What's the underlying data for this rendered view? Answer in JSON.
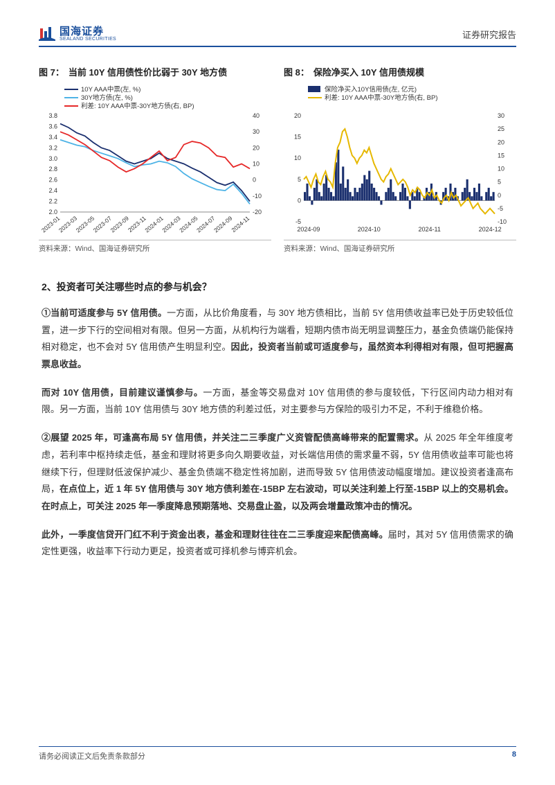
{
  "header": {
    "logo_cn": "国海证券",
    "logo_en": "SEALAND SECURITIES",
    "right": "证券研究报告"
  },
  "chart7": {
    "label": "图 7：",
    "title": "当前 10Y 信用债性价比弱于 30Y 地方债",
    "legend": [
      {
        "text": "10Y AAA中票(左, %)",
        "color": "#1a2f6e"
      },
      {
        "text": "30Y地方债(左, %)",
        "color": "#4db3e6"
      },
      {
        "text": "利差: 10Y AAA中票-30Y地方债(右, BP)",
        "color": "#e62828"
      }
    ],
    "yleft": {
      "min": 2.0,
      "max": 3.8,
      "ticks": [
        2.0,
        2.2,
        2.4,
        2.6,
        2.8,
        3.0,
        3.2,
        3.4,
        3.6,
        3.8
      ]
    },
    "yright": {
      "min": -20,
      "max": 40,
      "ticks": [
        -20,
        -10,
        0,
        10,
        20,
        30,
        40
      ]
    },
    "xlabels": [
      "2023-01",
      "2023-03",
      "2023-05",
      "2023-07",
      "2023-09",
      "2023-11",
      "2024-01",
      "2024-03",
      "2024-05",
      "2024-07",
      "2024-09",
      "2024-11"
    ],
    "series": {
      "s10y": [
        3.65,
        3.58,
        3.48,
        3.42,
        3.3,
        3.2,
        3.15,
        3.05,
        2.95,
        2.9,
        2.95,
        3.0,
        3.1,
        3.0,
        2.95,
        2.9,
        2.82,
        2.75,
        2.65,
        2.55,
        2.5,
        2.56,
        2.4,
        2.2
      ],
      "s30y": [
        3.35,
        3.3,
        3.25,
        3.22,
        3.15,
        3.1,
        3.05,
        3.0,
        2.92,
        2.85,
        2.88,
        2.9,
        2.95,
        2.92,
        2.85,
        2.72,
        2.62,
        2.55,
        2.48,
        2.42,
        2.4,
        2.52,
        2.35,
        2.15
      ],
      "spread": [
        30,
        28,
        25,
        22,
        18,
        14,
        12,
        8,
        5,
        7,
        10,
        14,
        18,
        12,
        14,
        22,
        24,
        23,
        20,
        15,
        14,
        8,
        10,
        7
      ]
    },
    "colors": {
      "s10y": "#1a2f6e",
      "s30y": "#4db3e6",
      "spread": "#e62828",
      "grid": "#d8d8d8",
      "axis": "#888",
      "text": "#333",
      "bg": "#ffffff"
    },
    "source": "资料来源：Wind、国海证券研究所"
  },
  "chart8": {
    "label": "图 8：",
    "title": "保险净买入 10Y 信用债规模",
    "legend": [
      {
        "text": "保险净买入10Y信用债(左, 亿元)",
        "color": "#1a2f6e",
        "type": "bar"
      },
      {
        "text": "利差: 10Y AAA中票-30Y地方债(右, BP)",
        "color": "#e6b800",
        "type": "line"
      }
    ],
    "yleft": {
      "min": -5,
      "max": 20,
      "ticks": [
        -5,
        0,
        5,
        10,
        15,
        20
      ]
    },
    "yright": {
      "min": -10,
      "max": 30,
      "ticks": [
        -10,
        -5,
        0,
        5,
        10,
        15,
        20,
        25,
        30
      ]
    },
    "xlabels": [
      "2024-09",
      "2024-10",
      "2024-11",
      "2024-12"
    ],
    "series": {
      "bars": [
        2,
        4,
        1,
        -1,
        3,
        5,
        2,
        1,
        4,
        6,
        3,
        2,
        1,
        9,
        12,
        4,
        8,
        3,
        5,
        2,
        1,
        3,
        2,
        3,
        4,
        6,
        5,
        7,
        4,
        3,
        2,
        1,
        -1,
        0,
        2,
        3,
        5,
        2,
        1,
        0,
        2,
        4,
        3,
        1,
        -2,
        2,
        1,
        3,
        2,
        0,
        1,
        3,
        2,
        4,
        1,
        2,
        0,
        -1,
        2,
        3,
        1,
        4,
        2,
        3,
        1,
        0,
        2,
        3,
        5,
        2,
        1,
        3,
        2,
        4,
        1,
        0,
        2,
        3,
        1,
        2
      ],
      "line": [
        6,
        7,
        5,
        3,
        6,
        8,
        5,
        4,
        7,
        9,
        6,
        5,
        3,
        12,
        18,
        20,
        24,
        25,
        22,
        18,
        15,
        14,
        12,
        14,
        15,
        17,
        16,
        18,
        15,
        12,
        10,
        8,
        6,
        5,
        7,
        8,
        10,
        8,
        6,
        4,
        5,
        6,
        5,
        3,
        0,
        2,
        1,
        3,
        2,
        0,
        -1,
        1,
        0,
        2,
        -1,
        0,
        -2,
        -3,
        -1,
        0,
        -2,
        1,
        -1,
        0,
        -2,
        -4,
        -3,
        -2,
        -1,
        -3,
        -5,
        -4,
        -3,
        -5,
        -6,
        -7,
        -6,
        -5,
        -6,
        -7
      ]
    },
    "colors": {
      "bar": "#1a2f6e",
      "line": "#e6b800",
      "grid": "#d8d8d8",
      "axis": "#888",
      "text": "#333",
      "bg": "#ffffff"
    },
    "source": "资料来源：Wind、国海证券研究所"
  },
  "body": {
    "section": "2、投资者可关注哪些时点的参与机会？",
    "p1_lead": "①当前可适度参与 5Y 信用债。",
    "p1_rest": "一方面，从比价角度看，与 30Y 地方债相比，当前 5Y 信用债收益率已处于历史较低位置，进一步下行的空间相对有限。但另一方面，从机构行为端看，短期内债市尚无明显调整压力，基金负债端仍能保持相对稳定，也不会对 5Y 信用债产生明显利空。",
    "p1_bold": "因此，投资者当前或可适度参与，虽然资本利得相对有限，但可把握高票息收益。",
    "p2_lead": "而对 10Y 信用债，目前建议谨慎参与。",
    "p2_rest": "一方面，基金等交易盘对 10Y 信用债的参与度较低，下行区间内动力相对有限。另一方面，当前 10Y 信用债与 30Y 地方债的利差过低，对主要参与方保险的吸引力不足，不利于维稳价格。",
    "p3_lead": "②展望 2025 年，可逢高布局 5Y 信用债，并关注二三季度广义资管配债高峰带来的配置需求。",
    "p3_rest1": "从 2025 年全年维度考虑，若利率中枢持续走低，基金和理财将更多向久期要收益，对长端信用债的需求量不弱，5Y 信用债收益率可能也将继续下行，但理财低波保护减少、基金负债端不稳定性将加剧，进而导致 5Y 信用债波动幅度增加。建议投资者逢高布局，",
    "p3_bold1": "在点位上，近 1 年 5Y 信用债与 30Y 地方债利差在-15BP 左右波动，可以关注利差上行至-15BP 以上的交易机会。在时点上，可关注 2025 年一季度降息预期落地、交易盘止盈，以及两会增量政策冲击的情况。",
    "p4_lead": "此外，一季度信贷开门红不利于资金出表，基金和理财往往在二三季度迎来配债高峰。",
    "p4_rest": "届时，其对 5Y 信用债需求的确定性更强，收益率下行动力更足，投资者或可择机参与博弈机会。"
  },
  "footer": {
    "left": "请务必阅读正文后免责条款部分",
    "page": "8"
  }
}
